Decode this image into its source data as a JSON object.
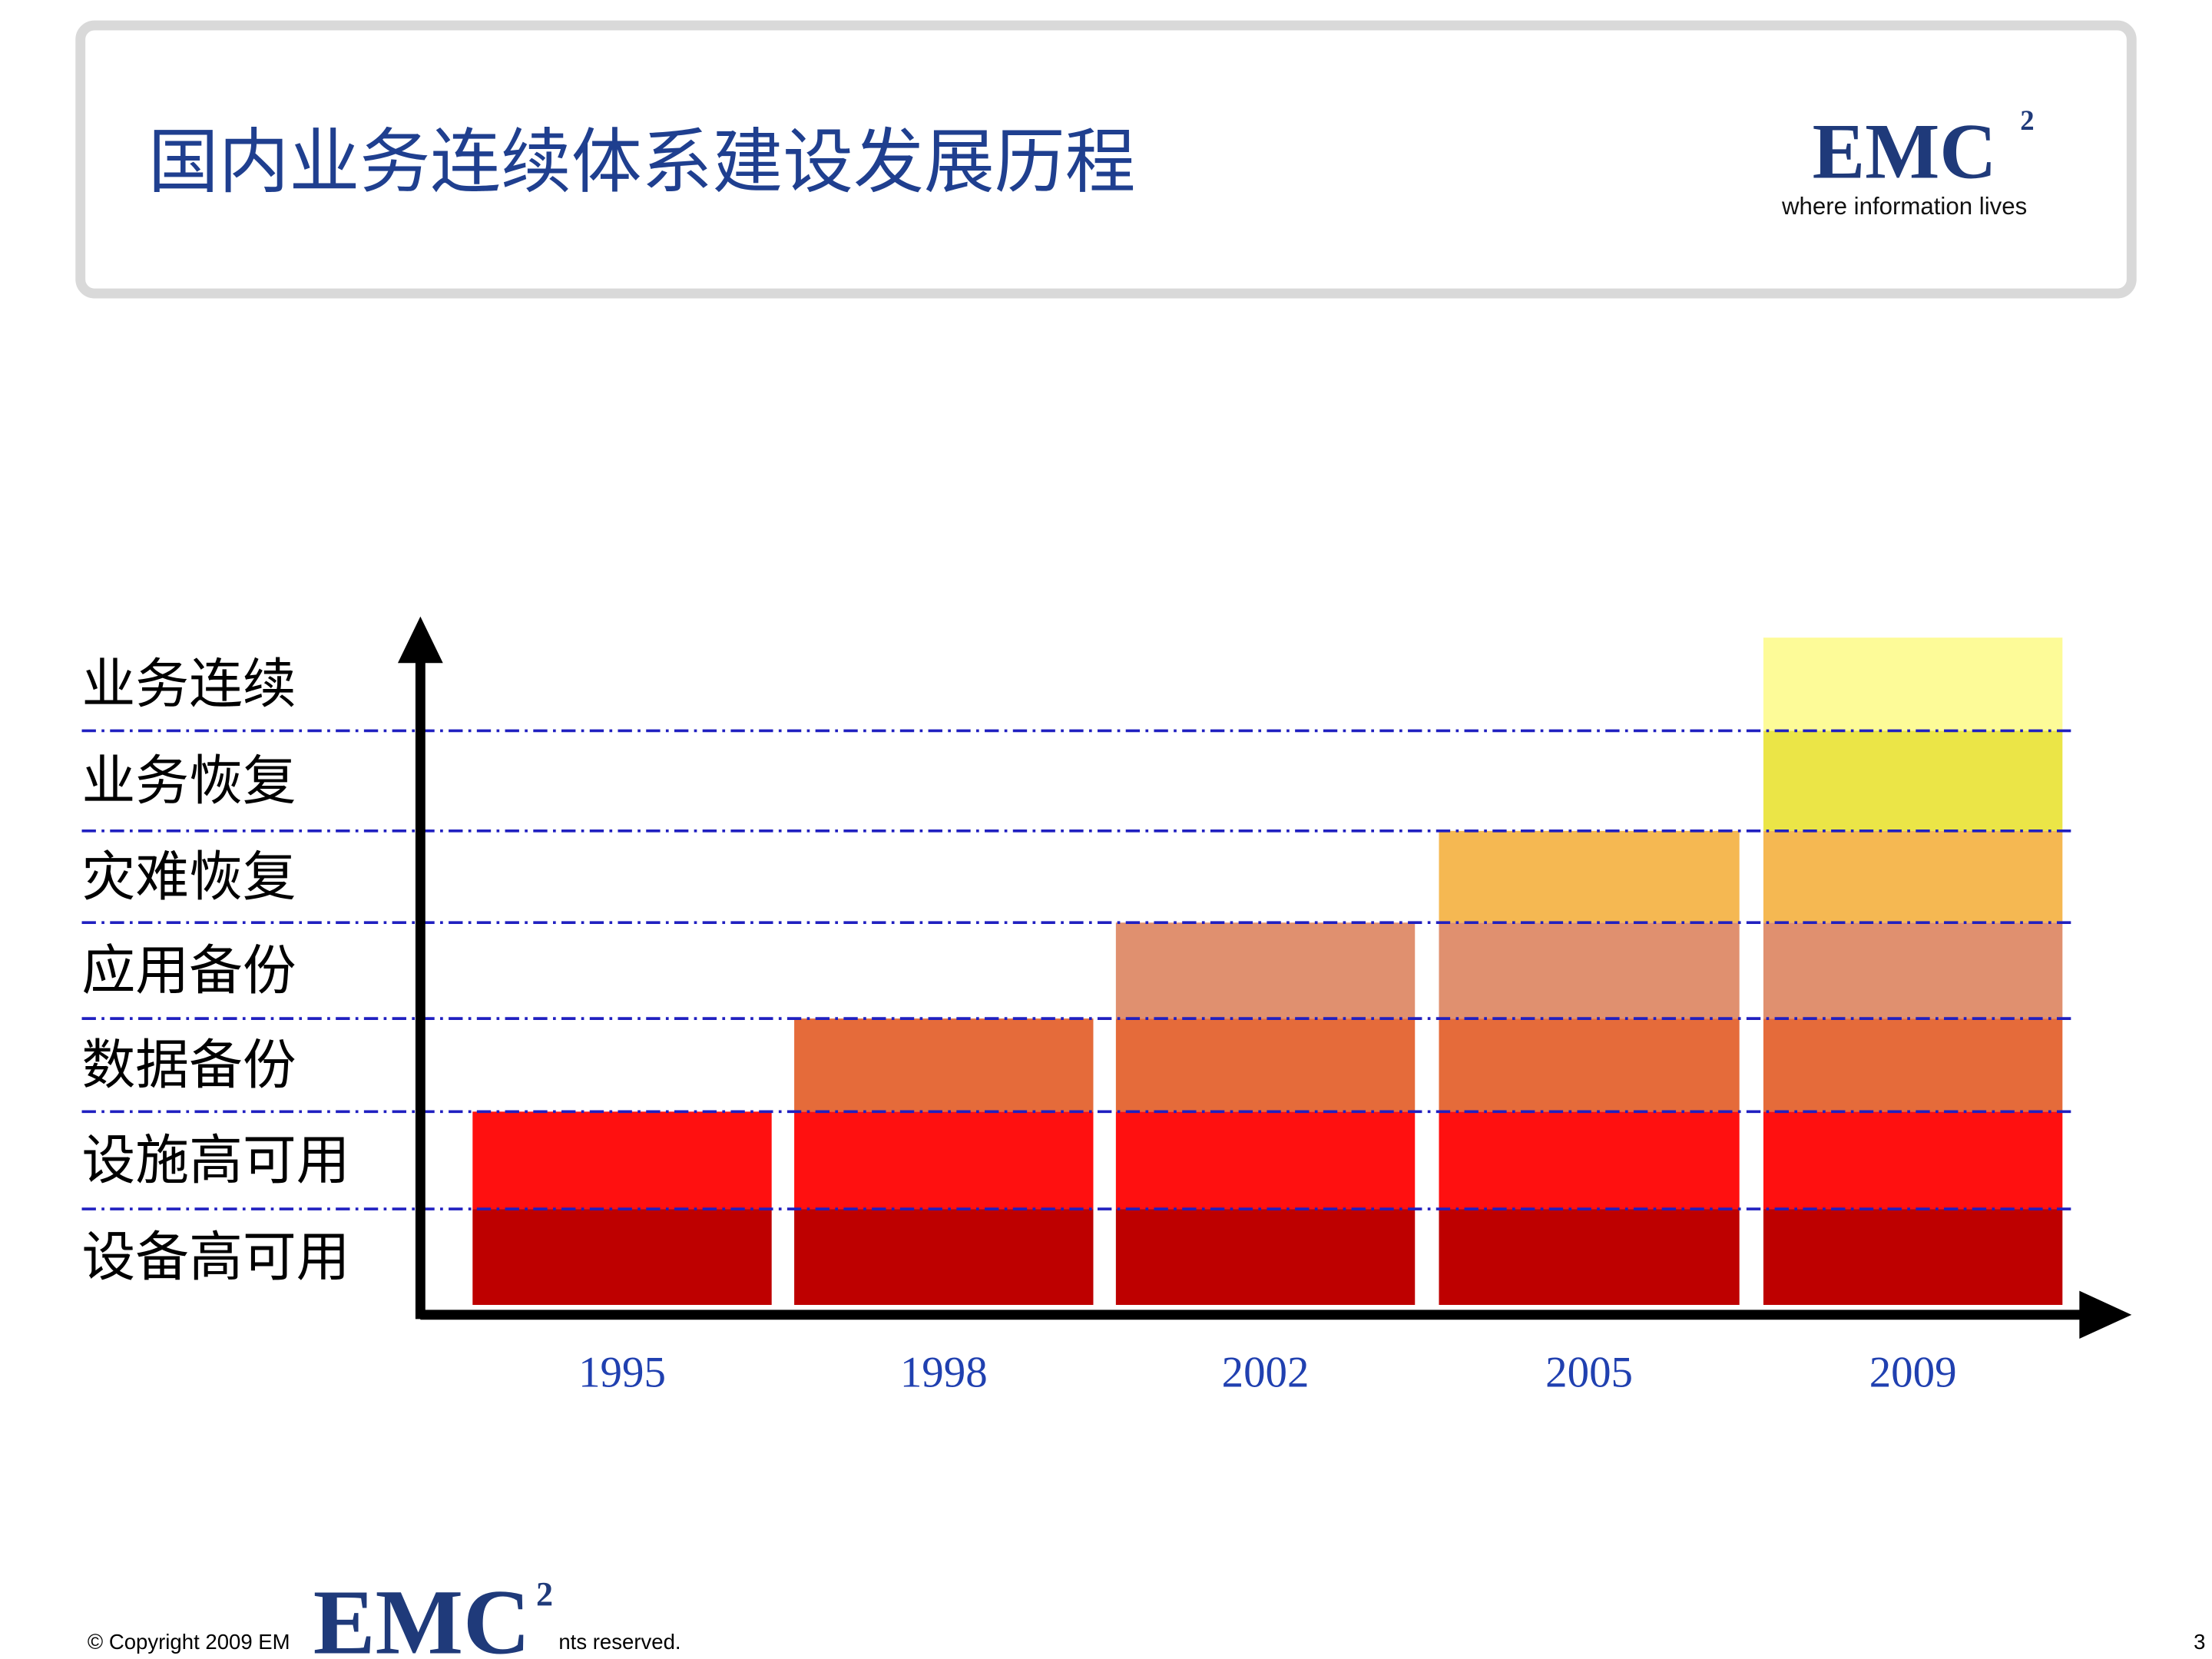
{
  "header": {
    "title": "国内业务连续体系建设发展历程",
    "logo": "EMC",
    "logo_sup": "2",
    "tagline": "where information lives"
  },
  "levels": [
    {
      "label": "设备高可用",
      "color": "#be0000"
    },
    {
      "label": "设施高可用",
      "color": "#ff1010"
    },
    {
      "label": "数据备份",
      "color": "#e56b3a"
    },
    {
      "label": "应用备份",
      "color": "#e0906f"
    },
    {
      "label": "灾难恢复",
      "color": "#f5b852"
    },
    {
      "label": "业务恢复",
      "color": "#ebe547"
    },
    {
      "label": "业务连续",
      "color": "#fdfb98"
    }
  ],
  "years": [
    {
      "label": "1995",
      "levels": 2
    },
    {
      "label": "1998",
      "levels": 3
    },
    {
      "label": "2002",
      "levels": 4
    },
    {
      "label": "2005",
      "levels": 5
    },
    {
      "label": "2009",
      "levels": 7
    }
  ],
  "footer": {
    "copyright": "© Copyright 2009 EM",
    "logo": "EMC",
    "logo_sup": "2",
    "reserved": "nts reserved.",
    "page": "3"
  }
}
